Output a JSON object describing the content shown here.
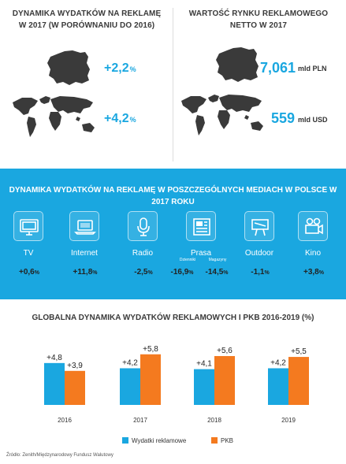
{
  "top": {
    "left_title": "DYNAMIKA WYDATKÓW NA REKLAMĘ W 2017 (W PORÓWNANIU DO 2016)",
    "left_poland_value": "+2,2",
    "left_world_value": "+4,2",
    "percent_sign": "%",
    "right_title": "WARTOŚĆ RYNKU REKLAMOWEGO NETTO W 2017",
    "right_poland_value": "7,061",
    "right_poland_unit": "mld PLN",
    "right_world_value": "559",
    "right_world_unit": "mld USD"
  },
  "media": {
    "title": "DYNAMIKA WYDATKÓW NA REKLAMĘ W POSZCZEGÓLNYCH MEDIACH W POLSCE W 2017 ROKU",
    "items": [
      {
        "label": "TV",
        "icon": "tv-icon",
        "value": "+0,6"
      },
      {
        "label": "Internet",
        "icon": "laptop-icon",
        "value": "+11,8"
      },
      {
        "label": "Radio",
        "icon": "microphone-icon",
        "value": "-2,5"
      },
      {
        "label": "Prasa",
        "icon": "newspaper-icon",
        "sub": [
          "Dzienniki",
          "Magazyny"
        ],
        "values": [
          "-16,9",
          "-14,5"
        ]
      },
      {
        "label": "Outdoor",
        "icon": "billboard-icon",
        "value": "-1,1"
      },
      {
        "label": "Kino",
        "icon": "film-camera-icon",
        "value": "+3,8"
      }
    ]
  },
  "chart_data": {
    "type": "bar",
    "title": "GLOBALNA DYNAMIKA WYDATKÓW REKLAMOWYCH I PKB 2016-2019 (%)",
    "categories": [
      "2016",
      "2017",
      "2018",
      "2019"
    ],
    "series": [
      {
        "name": "Wydatki reklamowe",
        "values": [
          4.8,
          4.2,
          4.1,
          4.2
        ],
        "labels": [
          "+4,8",
          "+4,2",
          "+4,1",
          "+4,2"
        ],
        "color": "#1aa7e0"
      },
      {
        "name": "PKB",
        "values": [
          3.9,
          5.8,
          5.6,
          5.5
        ],
        "labels": [
          "+3,9",
          "+5,8",
          "+5,6",
          "+5,5"
        ],
        "color": "#f47a1f"
      }
    ],
    "ylim": [
      0,
      6.5
    ],
    "grid": false,
    "legend": "bottom"
  },
  "colors": {
    "accent": "#1aa7e0",
    "orange": "#f47a1f",
    "map": "#3a3a3a"
  },
  "source": "Źródło: Zenith/Międzynarodowy Fundusz Walutowy"
}
